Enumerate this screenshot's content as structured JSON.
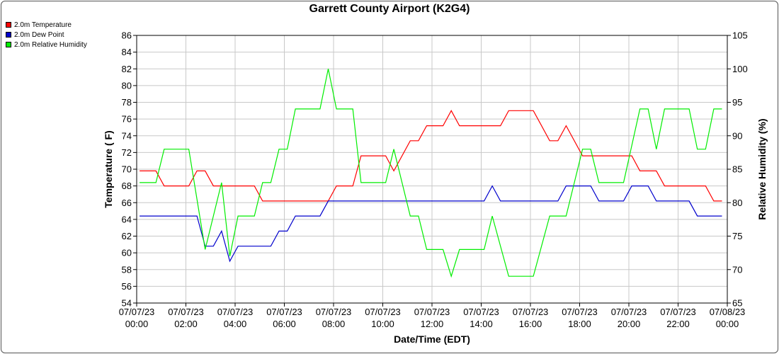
{
  "chart_data": {
    "type": "line",
    "title": "Garrett County Airport (K2G4)",
    "xlabel": "Date/Time (EDT)",
    "ylabel": "Temperature ( F)",
    "y2label": "Relative Humidity (%)",
    "ylim": [
      54,
      86
    ],
    "y2lim": [
      65,
      105
    ],
    "xlim": [
      "07/07/23 00:00",
      "07/08/23 00:00"
    ],
    "x_ticks": [
      {
        "date": "07/07/23",
        "time": "00:00"
      },
      {
        "date": "07/07/23",
        "time": "02:00"
      },
      {
        "date": "07/07/23",
        "time": "04:00"
      },
      {
        "date": "07/07/23",
        "time": "06:00"
      },
      {
        "date": "07/07/23",
        "time": "08:00"
      },
      {
        "date": "07/07/23",
        "time": "10:00"
      },
      {
        "date": "07/07/23",
        "time": "12:00"
      },
      {
        "date": "07/07/23",
        "time": "14:00"
      },
      {
        "date": "07/07/23",
        "time": "16:00"
      },
      {
        "date": "07/07/23",
        "time": "18:00"
      },
      {
        "date": "07/07/23",
        "time": "20:00"
      },
      {
        "date": "07/07/23",
        "time": "22:00"
      },
      {
        "date": "07/08/23",
        "time": "00:00"
      }
    ],
    "y_ticks": [
      54,
      56,
      58,
      60,
      62,
      64,
      66,
      68,
      70,
      72,
      74,
      76,
      78,
      80,
      82,
      84,
      86
    ],
    "y2_ticks": [
      65,
      70,
      75,
      80,
      85,
      90,
      95,
      100,
      105
    ],
    "grid": true,
    "legend_position": "top-left",
    "series": [
      {
        "name": "2.0m Temperature",
        "color": "#ff0000",
        "axis": "left",
        "points": [
          [
            "00:07",
            69.8
          ],
          [
            "00:47",
            69.8
          ],
          [
            "01:07",
            68.0
          ],
          [
            "02:07",
            68.0
          ],
          [
            "02:27",
            69.8
          ],
          [
            "02:47",
            69.8
          ],
          [
            "03:07",
            68.0
          ],
          [
            "04:47",
            68.0
          ],
          [
            "05:07",
            66.2
          ],
          [
            "07:47",
            66.2
          ],
          [
            "08:07",
            68.0
          ],
          [
            "08:47",
            68.0
          ],
          [
            "09:07",
            71.6
          ],
          [
            "10:07",
            71.6
          ],
          [
            "10:27",
            69.8
          ],
          [
            "11:07",
            73.4
          ],
          [
            "11:27",
            73.4
          ],
          [
            "11:47",
            75.2
          ],
          [
            "12:27",
            75.2
          ],
          [
            "12:47",
            77.0
          ],
          [
            "13:07",
            75.2
          ],
          [
            "14:47",
            75.2
          ],
          [
            "15:07",
            77.0
          ],
          [
            "16:07",
            77.0
          ],
          [
            "16:47",
            73.4
          ],
          [
            "17:07",
            73.4
          ],
          [
            "17:27",
            75.2
          ],
          [
            "18:07",
            71.6
          ],
          [
            "20:07",
            71.6
          ],
          [
            "20:27",
            69.8
          ],
          [
            "21:07",
            69.8
          ],
          [
            "21:27",
            68.0
          ],
          [
            "23:07",
            68.0
          ],
          [
            "23:27",
            66.2
          ],
          [
            "23:47",
            66.2
          ]
        ]
      },
      {
        "name": "2.0m Dew Point",
        "color": "#0000cc",
        "axis": "left",
        "points": [
          [
            "00:07",
            64.4
          ],
          [
            "02:27",
            64.4
          ],
          [
            "02:47",
            60.8
          ],
          [
            "03:07",
            60.8
          ],
          [
            "03:27",
            62.6
          ],
          [
            "03:47",
            59.0
          ],
          [
            "04:07",
            60.8
          ],
          [
            "05:27",
            60.8
          ],
          [
            "05:47",
            62.6
          ],
          [
            "06:07",
            62.6
          ],
          [
            "06:27",
            64.4
          ],
          [
            "07:27",
            64.4
          ],
          [
            "07:47",
            66.2
          ],
          [
            "14:07",
            66.2
          ],
          [
            "14:27",
            68.0
          ],
          [
            "14:47",
            66.2
          ],
          [
            "17:07",
            66.2
          ],
          [
            "17:27",
            68.0
          ],
          [
            "18:27",
            68.0
          ],
          [
            "18:47",
            66.2
          ],
          [
            "19:47",
            66.2
          ],
          [
            "20:07",
            68.0
          ],
          [
            "20:47",
            68.0
          ],
          [
            "21:07",
            66.2
          ],
          [
            "22:27",
            66.2
          ],
          [
            "22:47",
            64.4
          ],
          [
            "23:47",
            64.4
          ]
        ]
      },
      {
        "name": "2.0m Relative Humidity",
        "color": "#00ee00",
        "axis": "right",
        "points": [
          [
            "00:07",
            83
          ],
          [
            "00:47",
            83
          ],
          [
            "01:07",
            88
          ],
          [
            "02:07",
            88
          ],
          [
            "02:47",
            73
          ],
          [
            "03:27",
            83
          ],
          [
            "03:47",
            72
          ],
          [
            "04:07",
            78
          ],
          [
            "04:47",
            78
          ],
          [
            "05:07",
            83
          ],
          [
            "05:27",
            83
          ],
          [
            "05:47",
            88
          ],
          [
            "06:07",
            88
          ],
          [
            "06:27",
            94
          ],
          [
            "07:27",
            94
          ],
          [
            "07:47",
            100
          ],
          [
            "08:07",
            94
          ],
          [
            "08:47",
            94
          ],
          [
            "09:07",
            83
          ],
          [
            "10:07",
            83
          ],
          [
            "10:27",
            88
          ],
          [
            "11:07",
            78
          ],
          [
            "11:27",
            78
          ],
          [
            "11:47",
            73
          ],
          [
            "12:27",
            73
          ],
          [
            "12:47",
            69
          ],
          [
            "13:07",
            73
          ],
          [
            "14:07",
            73
          ],
          [
            "14:27",
            78
          ],
          [
            "15:07",
            69
          ],
          [
            "16:07",
            69
          ],
          [
            "16:47",
            78
          ],
          [
            "17:07",
            78
          ],
          [
            "17:27",
            78
          ],
          [
            "18:07",
            88
          ],
          [
            "18:27",
            88
          ],
          [
            "18:47",
            83
          ],
          [
            "19:47",
            83
          ],
          [
            "20:27",
            94
          ],
          [
            "20:47",
            94
          ],
          [
            "21:07",
            88
          ],
          [
            "21:27",
            94
          ],
          [
            "22:27",
            94
          ],
          [
            "22:47",
            88
          ],
          [
            "23:07",
            88
          ],
          [
            "23:27",
            94
          ],
          [
            "23:47",
            94
          ]
        ]
      }
    ]
  }
}
